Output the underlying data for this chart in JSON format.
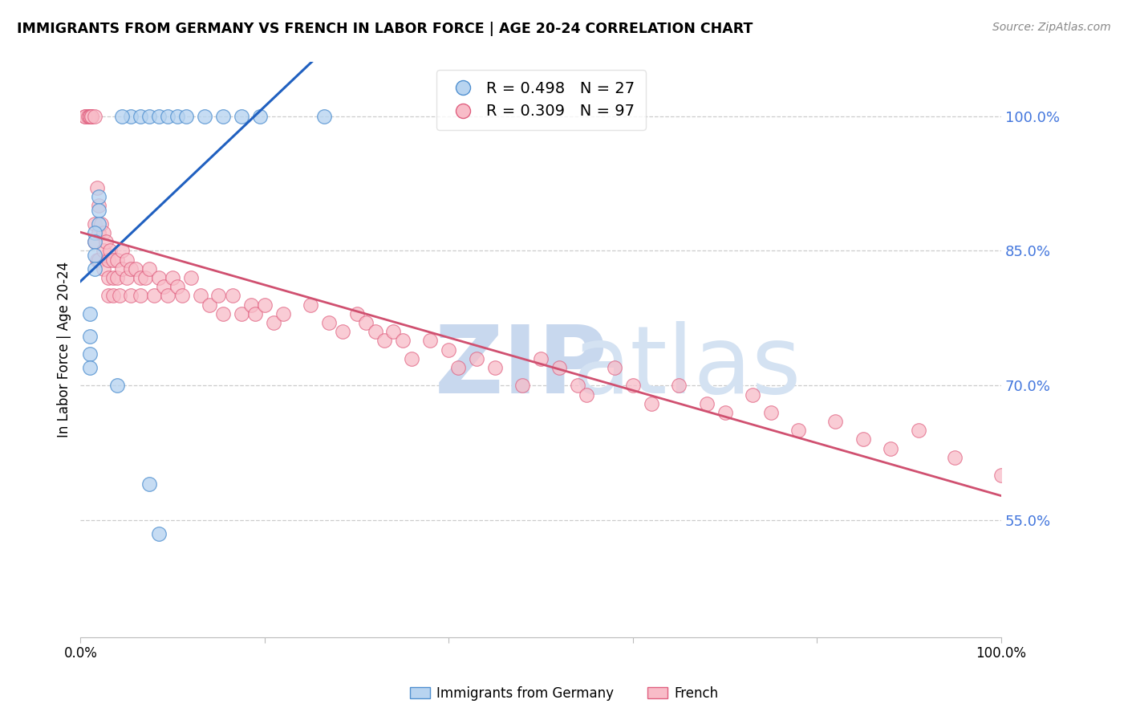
{
  "title": "IMMIGRANTS FROM GERMANY VS FRENCH IN LABOR FORCE | AGE 20-24 CORRELATION CHART",
  "source": "Source: ZipAtlas.com",
  "ylabel": "In Labor Force | Age 20-24",
  "ytick_values": [
    0.55,
    0.7,
    0.85,
    1.0
  ],
  "ytick_labels": [
    "55.0%",
    "70.0%",
    "85.0%",
    "100.0%"
  ],
  "xlim": [
    0.0,
    1.0
  ],
  "ylim": [
    0.42,
    1.06
  ],
  "legend_germany": "Immigrants from Germany",
  "legend_french": "French",
  "r_germany": 0.498,
  "n_germany": 27,
  "r_french": 0.309,
  "n_french": 97,
  "color_germany_fill": "#B8D4F0",
  "color_germany_edge": "#5090D0",
  "color_french_fill": "#F8BCC8",
  "color_french_edge": "#E06080",
  "color_germany_line": "#2060C0",
  "color_french_line": "#D05070",
  "color_ytick": "#4477DD",
  "watermark_zip_color": "#D0DFF0",
  "watermark_atlas_color": "#C8D8EC",
  "background": "#ffffff",
  "germany_x": [
    0.055,
    0.065,
    0.075,
    0.085,
    0.095,
    0.105,
    0.115,
    0.135,
    0.155,
    0.175,
    0.195,
    0.265,
    0.045,
    0.02,
    0.02,
    0.02,
    0.015,
    0.015,
    0.015,
    0.015,
    0.01,
    0.01,
    0.01,
    0.01,
    0.04,
    0.075,
    0.085
  ],
  "germany_y": [
    1.0,
    1.0,
    1.0,
    1.0,
    1.0,
    1.0,
    1.0,
    1.0,
    1.0,
    1.0,
    1.0,
    1.0,
    1.0,
    0.91,
    0.895,
    0.88,
    0.87,
    0.86,
    0.845,
    0.83,
    0.78,
    0.755,
    0.735,
    0.72,
    0.7,
    0.59,
    0.535
  ],
  "french_x": [
    0.005,
    0.005,
    0.008,
    0.01,
    0.01,
    0.01,
    0.01,
    0.012,
    0.012,
    0.015,
    0.015,
    0.015,
    0.018,
    0.018,
    0.02,
    0.02,
    0.02,
    0.022,
    0.025,
    0.025,
    0.025,
    0.028,
    0.03,
    0.03,
    0.03,
    0.032,
    0.035,
    0.035,
    0.035,
    0.04,
    0.04,
    0.042,
    0.045,
    0.045,
    0.05,
    0.05,
    0.055,
    0.055,
    0.06,
    0.065,
    0.065,
    0.07,
    0.075,
    0.08,
    0.085,
    0.09,
    0.095,
    0.1,
    0.105,
    0.11,
    0.12,
    0.13,
    0.14,
    0.15,
    0.155,
    0.165,
    0.175,
    0.185,
    0.19,
    0.2,
    0.21,
    0.22,
    0.25,
    0.27,
    0.285,
    0.3,
    0.31,
    0.32,
    0.33,
    0.34,
    0.35,
    0.36,
    0.38,
    0.4,
    0.41,
    0.43,
    0.45,
    0.48,
    0.5,
    0.52,
    0.54,
    0.55,
    0.58,
    0.6,
    0.62,
    0.65,
    0.68,
    0.7,
    0.73,
    0.75,
    0.78,
    0.82,
    0.85,
    0.88,
    0.91,
    0.95,
    1.0
  ],
  "french_y": [
    1.0,
    1.0,
    1.0,
    1.0,
    1.0,
    1.0,
    1.0,
    1.0,
    1.0,
    1.0,
    0.88,
    0.86,
    0.92,
    0.84,
    0.9,
    0.87,
    0.84,
    0.88,
    0.87,
    0.85,
    0.83,
    0.86,
    0.84,
    0.82,
    0.8,
    0.85,
    0.84,
    0.82,
    0.8,
    0.84,
    0.82,
    0.8,
    0.85,
    0.83,
    0.84,
    0.82,
    0.83,
    0.8,
    0.83,
    0.82,
    0.8,
    0.82,
    0.83,
    0.8,
    0.82,
    0.81,
    0.8,
    0.82,
    0.81,
    0.8,
    0.82,
    0.8,
    0.79,
    0.8,
    0.78,
    0.8,
    0.78,
    0.79,
    0.78,
    0.79,
    0.77,
    0.78,
    0.79,
    0.77,
    0.76,
    0.78,
    0.77,
    0.76,
    0.75,
    0.76,
    0.75,
    0.73,
    0.75,
    0.74,
    0.72,
    0.73,
    0.72,
    0.7,
    0.73,
    0.72,
    0.7,
    0.69,
    0.72,
    0.7,
    0.68,
    0.7,
    0.68,
    0.67,
    0.69,
    0.67,
    0.65,
    0.66,
    0.64,
    0.63,
    0.65,
    0.62,
    0.6
  ]
}
